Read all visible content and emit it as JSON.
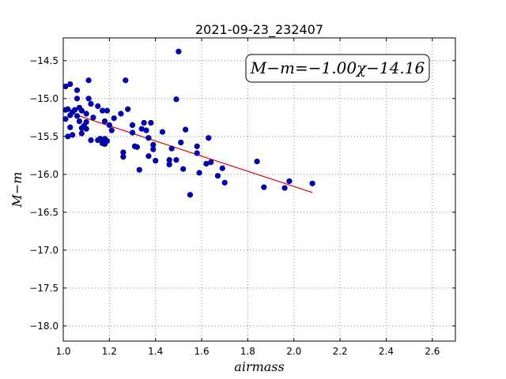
{
  "chart_data": {
    "type": "scatter",
    "title": "2021-09-23_232407",
    "xlabel": "airmass",
    "ylabel": "M−m",
    "xlim": [
      1.0,
      2.7
    ],
    "ylim": [
      -18.2,
      -14.2
    ],
    "xticks": [
      "1.0",
      "1.2",
      "1.4",
      "1.6",
      "1.8",
      "2.0",
      "2.2",
      "2.4",
      "2.6"
    ],
    "yticks": [
      "−14.5",
      "−15.0",
      "−15.5",
      "−16.0",
      "−16.5",
      "−17.0",
      "−17.5",
      "−18.0"
    ],
    "grid": true,
    "annotation": "M−m=−1.00χ−14.16",
    "point_color": "#0000cc",
    "fit_color": "#dd0000",
    "fit": {
      "slope": -1.0,
      "intercept": -14.16,
      "x_range": [
        1.07,
        2.08
      ]
    },
    "points": [
      [
        1.01,
        -14.84
      ],
      [
        1.03,
        -14.81
      ],
      [
        1.06,
        -14.89
      ],
      [
        1.11,
        -14.76
      ],
      [
        1.27,
        -14.76
      ],
      [
        1.5,
        -14.38
      ],
      [
        1.02,
        -15.14
      ],
      [
        1.01,
        -15.15
      ],
      [
        1.01,
        -15.27
      ],
      [
        1.03,
        -15.22
      ],
      [
        1.04,
        -15.18
      ],
      [
        1.05,
        -15.15
      ],
      [
        1.06,
        -15.0
      ],
      [
        1.07,
        -15.12
      ],
      [
        1.08,
        -15.16
      ],
      [
        1.1,
        -15.2
      ],
      [
        1.11,
        -15.0
      ],
      [
        1.12,
        -15.07
      ],
      [
        1.03,
        -15.38
      ],
      [
        1.02,
        -15.5
      ],
      [
        1.04,
        -15.48
      ],
      [
        1.06,
        -15.23
      ],
      [
        1.07,
        -15.3
      ],
      [
        1.08,
        -15.39
      ],
      [
        1.09,
        -15.36
      ],
      [
        1.1,
        -15.4
      ],
      [
        1.08,
        -15.46
      ],
      [
        1.1,
        -15.31
      ],
      [
        1.13,
        -15.25
      ],
      [
        1.15,
        -15.1
      ],
      [
        1.17,
        -15.16
      ],
      [
        1.19,
        -15.16
      ],
      [
        1.22,
        -15.26
      ],
      [
        1.25,
        -15.2
      ],
      [
        1.28,
        -15.14
      ],
      [
        1.15,
        -15.55
      ],
      [
        1.16,
        -15.53
      ],
      [
        1.17,
        -15.57
      ],
      [
        1.18,
        -15.53
      ],
      [
        1.19,
        -15.56
      ],
      [
        1.17,
        -15.59
      ],
      [
        1.18,
        -15.6
      ],
      [
        1.2,
        -15.35
      ],
      [
        1.21,
        -15.42
      ],
      [
        1.18,
        -15.3
      ],
      [
        1.26,
        -15.71
      ],
      [
        1.26,
        -15.77
      ],
      [
        1.3,
        -15.45
      ],
      [
        1.31,
        -15.63
      ],
      [
        1.32,
        -15.64
      ],
      [
        1.33,
        -15.94
      ],
      [
        1.35,
        -15.32
      ],
      [
        1.34,
        -15.4
      ],
      [
        1.36,
        -15.42
      ],
      [
        1.38,
        -15.32
      ],
      [
        1.37,
        -15.52
      ],
      [
        1.37,
        -15.76
      ],
      [
        1.39,
        -15.61
      ],
      [
        1.39,
        -15.67
      ],
      [
        1.4,
        -15.82
      ],
      [
        1.43,
        -15.44
      ],
      [
        1.46,
        -15.81
      ],
      [
        1.46,
        -15.87
      ],
      [
        1.47,
        -15.66
      ],
      [
        1.49,
        -15.81
      ],
      [
        1.49,
        -15.01
      ],
      [
        1.51,
        -15.58
      ],
      [
        1.52,
        -15.93
      ],
      [
        1.53,
        -15.41
      ],
      [
        1.55,
        -16.27
      ],
      [
        1.58,
        -15.63
      ],
      [
        1.58,
        -15.72
      ],
      [
        1.59,
        -15.98
      ],
      [
        1.62,
        -15.86
      ],
      [
        1.63,
        -15.52
      ],
      [
        1.64,
        -15.84
      ],
      [
        1.67,
        -16.02
      ],
      [
        1.69,
        -15.92
      ],
      [
        1.7,
        -16.11
      ],
      [
        1.84,
        -15.83
      ],
      [
        1.87,
        -16.17
      ],
      [
        1.96,
        -16.18
      ],
      [
        1.98,
        -16.09
      ],
      [
        2.08,
        -16.12
      ],
      [
        1.3,
        -15.35
      ],
      [
        1.12,
        -15.55
      ]
    ]
  }
}
